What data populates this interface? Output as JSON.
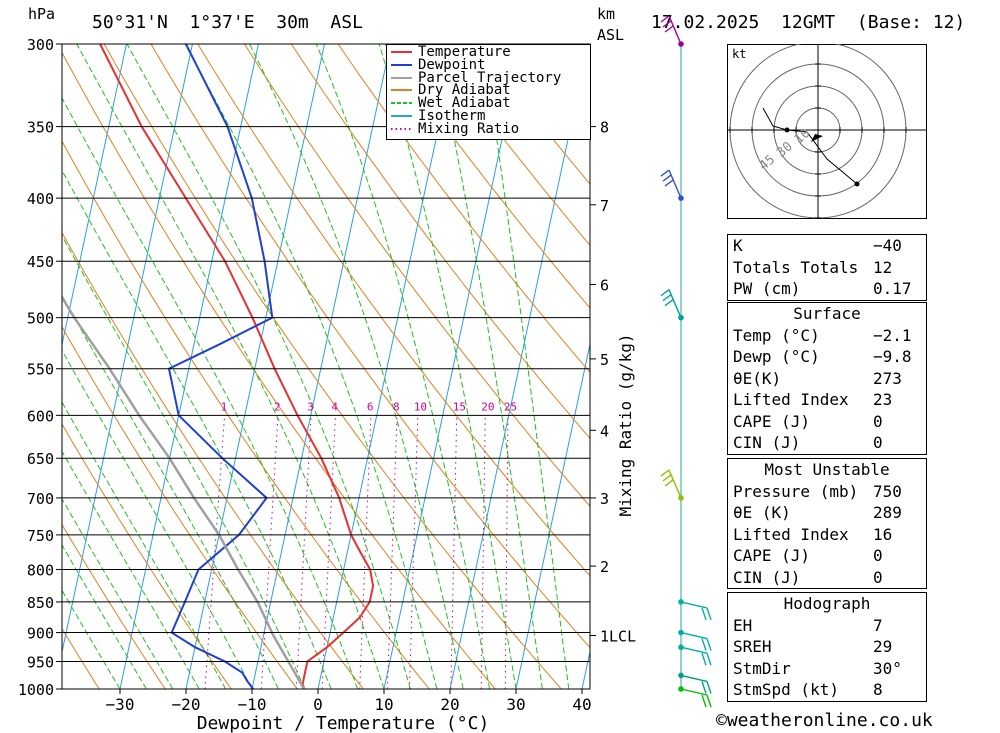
{
  "header": {
    "pressure_unit": "hPa",
    "location": "50°31'N  1°37'E  30m  ASL",
    "km_label": "km",
    "asl_label": "ASL",
    "datetime": "17.02.2025  12GMT  (Base: 12)"
  },
  "chart_data": {
    "type": "line",
    "title": "50°31'N  1°37'E  30m  ASL",
    "xlabel": "Dewpoint / Temperature (°C)",
    "ylabel": "hPa",
    "y2label": "Mixing Ratio (g/kg)",
    "xlim": [
      -40,
      40
    ],
    "ylim": [
      1000,
      300
    ],
    "x_ticks": [
      -30,
      -20,
      -10,
      0,
      10,
      20,
      30,
      40
    ],
    "pressure_levels": [
      300,
      350,
      400,
      450,
      500,
      550,
      600,
      650,
      700,
      750,
      800,
      850,
      900,
      950,
      1000
    ],
    "km_ticks": [
      {
        "label": "8",
        "p": 350
      },
      {
        "label": "7",
        "p": 405
      },
      {
        "label": "6",
        "p": 470
      },
      {
        "label": "5",
        "p": 540
      },
      {
        "label": "4",
        "p": 617
      },
      {
        "label": "3",
        "p": 700
      },
      {
        "label": "2",
        "p": 795
      },
      {
        "label": "1LCL",
        "p": 905
      }
    ],
    "mixing_ratio_labels": [
      "1",
      "2",
      "3",
      "4",
      "6",
      "8",
      "10",
      "15",
      "20",
      "25"
    ],
    "legend": [
      "Temperature",
      "Dewpoint",
      "Parcel Trajectory",
      "Dry Adiabat",
      "Wet Adiabat",
      "Isotherm",
      "Mixing Ratio"
    ],
    "legend_position": "top-right",
    "series": [
      {
        "name": "Temperature",
        "color": "#e83030",
        "points": [
          [
            1000,
            -2.1
          ],
          [
            990,
            -2.5
          ],
          [
            975,
            -2.5
          ],
          [
            950,
            -2.5
          ],
          [
            925,
            0
          ],
          [
            900,
            2
          ],
          [
            875,
            4
          ],
          [
            850,
            5
          ],
          [
            825,
            5
          ],
          [
            800,
            4
          ],
          [
            775,
            2
          ],
          [
            750,
            0
          ],
          [
            700,
            -3
          ],
          [
            650,
            -7
          ],
          [
            600,
            -12
          ],
          [
            550,
            -17
          ],
          [
            500,
            -22
          ],
          [
            450,
            -28
          ],
          [
            400,
            -36
          ],
          [
            350,
            -45
          ],
          [
            300,
            -54
          ]
        ]
      },
      {
        "name": "Dewpoint",
        "color": "#2040d0",
        "points": [
          [
            1000,
            -9.8
          ],
          [
            985,
            -11
          ],
          [
            970,
            -12
          ],
          [
            950,
            -15
          ],
          [
            925,
            -20
          ],
          [
            900,
            -24
          ],
          [
            850,
            -23
          ],
          [
            800,
            -22
          ],
          [
            750,
            -17
          ],
          [
            700,
            -14
          ],
          [
            650,
            -22
          ],
          [
            600,
            -30
          ],
          [
            550,
            -33
          ],
          [
            525,
            -26
          ],
          [
            500,
            -19
          ],
          [
            450,
            -22
          ],
          [
            400,
            -26
          ],
          [
            350,
            -32
          ],
          [
            300,
            -41
          ]
        ]
      },
      {
        "name": "Parcel Trajectory",
        "color": "#a0a0a0",
        "points": [
          [
            1000,
            -2.1
          ],
          [
            905,
            -8.5
          ],
          [
            850,
            -12
          ],
          [
            800,
            -16
          ],
          [
            750,
            -20
          ],
          [
            700,
            -25
          ],
          [
            650,
            -30
          ],
          [
            600,
            -36
          ],
          [
            550,
            -42
          ],
          [
            500,
            -49
          ],
          [
            450,
            -56
          ],
          [
            400,
            -64
          ],
          [
            350,
            -73
          ],
          [
            300,
            -82
          ]
        ]
      }
    ]
  },
  "wind_profile": {
    "barbs": [
      {
        "p": 300,
        "color": "#a000a0"
      },
      {
        "p": 400,
        "color": "#3050d0"
      },
      {
        "p": 500,
        "color": "#00a0a0"
      },
      {
        "p": 700,
        "color": "#90c000"
      },
      {
        "p": 850,
        "color": "#00b0a0"
      },
      {
        "p": 900,
        "color": "#00b0a0"
      },
      {
        "p": 925,
        "color": "#00b0a0"
      },
      {
        "p": 975,
        "color": "#00a080"
      },
      {
        "p": 1000,
        "color": "#00c000"
      }
    ]
  },
  "hodograph": {
    "unit": "kt",
    "ring_labels": [
      "10",
      "30",
      "45"
    ]
  },
  "indices": {
    "rows": [
      {
        "key": "K",
        "value": "-40"
      },
      {
        "key": "Totals Totals",
        "value": "12"
      },
      {
        "key": "PW (cm)",
        "value": "0.17"
      }
    ]
  },
  "surface": {
    "title": "Surface",
    "rows": [
      {
        "key": "Temp (°C)",
        "value": "-2.1"
      },
      {
        "key": "Dewp (°C)",
        "value": "-9.8"
      },
      {
        "key": "θE(K)",
        "value": "273"
      },
      {
        "key": "Lifted Index",
        "value": "23"
      },
      {
        "key": "CAPE (J)",
        "value": "0"
      },
      {
        "key": "CIN (J)",
        "value": "0"
      }
    ]
  },
  "most_unstable": {
    "title": "Most Unstable",
    "rows": [
      {
        "key": "Pressure (mb)",
        "value": "750"
      },
      {
        "key": "θE (K)",
        "value": "289"
      },
      {
        "key": "Lifted Index",
        "value": "16"
      },
      {
        "key": "CAPE (J)",
        "value": "0"
      },
      {
        "key": "CIN (J)",
        "value": "0"
      }
    ]
  },
  "hodograph_stats": {
    "title": "Hodograph",
    "rows": [
      {
        "key": "EH",
        "value": "7"
      },
      {
        "key": "SREH",
        "value": "29"
      },
      {
        "key": "StmDir",
        "value": "30°"
      },
      {
        "key": "StmSpd (kt)",
        "value": "8"
      }
    ]
  },
  "footer": "©weatheronline.co.uk"
}
